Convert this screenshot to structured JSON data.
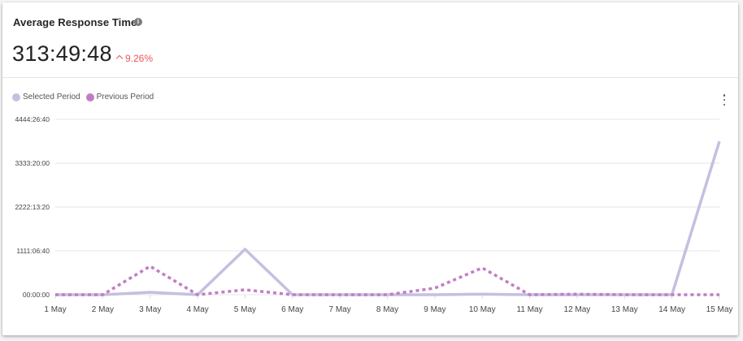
{
  "widget": {
    "title": "Average Response Time",
    "info_icon": "info-icon",
    "metric_value": "313:49:48",
    "delta": {
      "direction": "up",
      "icon": "chevron-up-icon",
      "value": "9.26%",
      "color": "#e8575a"
    },
    "menu_icon": "more-vertical-icon"
  },
  "legend": [
    {
      "label": "Selected Period",
      "color": "#c5bfe0",
      "style": "solid"
    },
    {
      "label": "Previous Period",
      "color": "#c27cc4",
      "style": "dotted"
    }
  ],
  "chart_data": {
    "type": "line",
    "title": "Average Response Time",
    "xlabel": "",
    "ylabel": "",
    "categories": [
      "1 May",
      "2 May",
      "3 May",
      "4 May",
      "5 May",
      "6 May",
      "7 May",
      "8 May",
      "9 May",
      "10 May",
      "11 May",
      "12 May",
      "13 May",
      "14 May",
      "15 May"
    ],
    "y_ticks": [
      "00:00:00",
      "1111:06:40",
      "2222:13:20",
      "3333:20:00",
      "4444:26:40"
    ],
    "y_tick_seconds": [
      0,
      4000000,
      8000000,
      12000000,
      16000000
    ],
    "ylim_seconds": [
      0,
      16000000
    ],
    "grid": true,
    "legend_position": "top-left",
    "series": [
      {
        "name": "Selected Period",
        "color": "#c5bfe0",
        "line_style": "solid",
        "values_seconds": [
          0,
          0,
          220000,
          0,
          4150000,
          0,
          0,
          0,
          0,
          50000,
          0,
          0,
          0,
          0,
          14000000
        ]
      },
      {
        "name": "Previous Period",
        "color": "#c27cc4",
        "line_style": "dotted",
        "values_seconds": [
          0,
          0,
          2600000,
          0,
          450000,
          0,
          0,
          0,
          600000,
          2450000,
          0,
          50000,
          0,
          0,
          0
        ]
      }
    ]
  }
}
